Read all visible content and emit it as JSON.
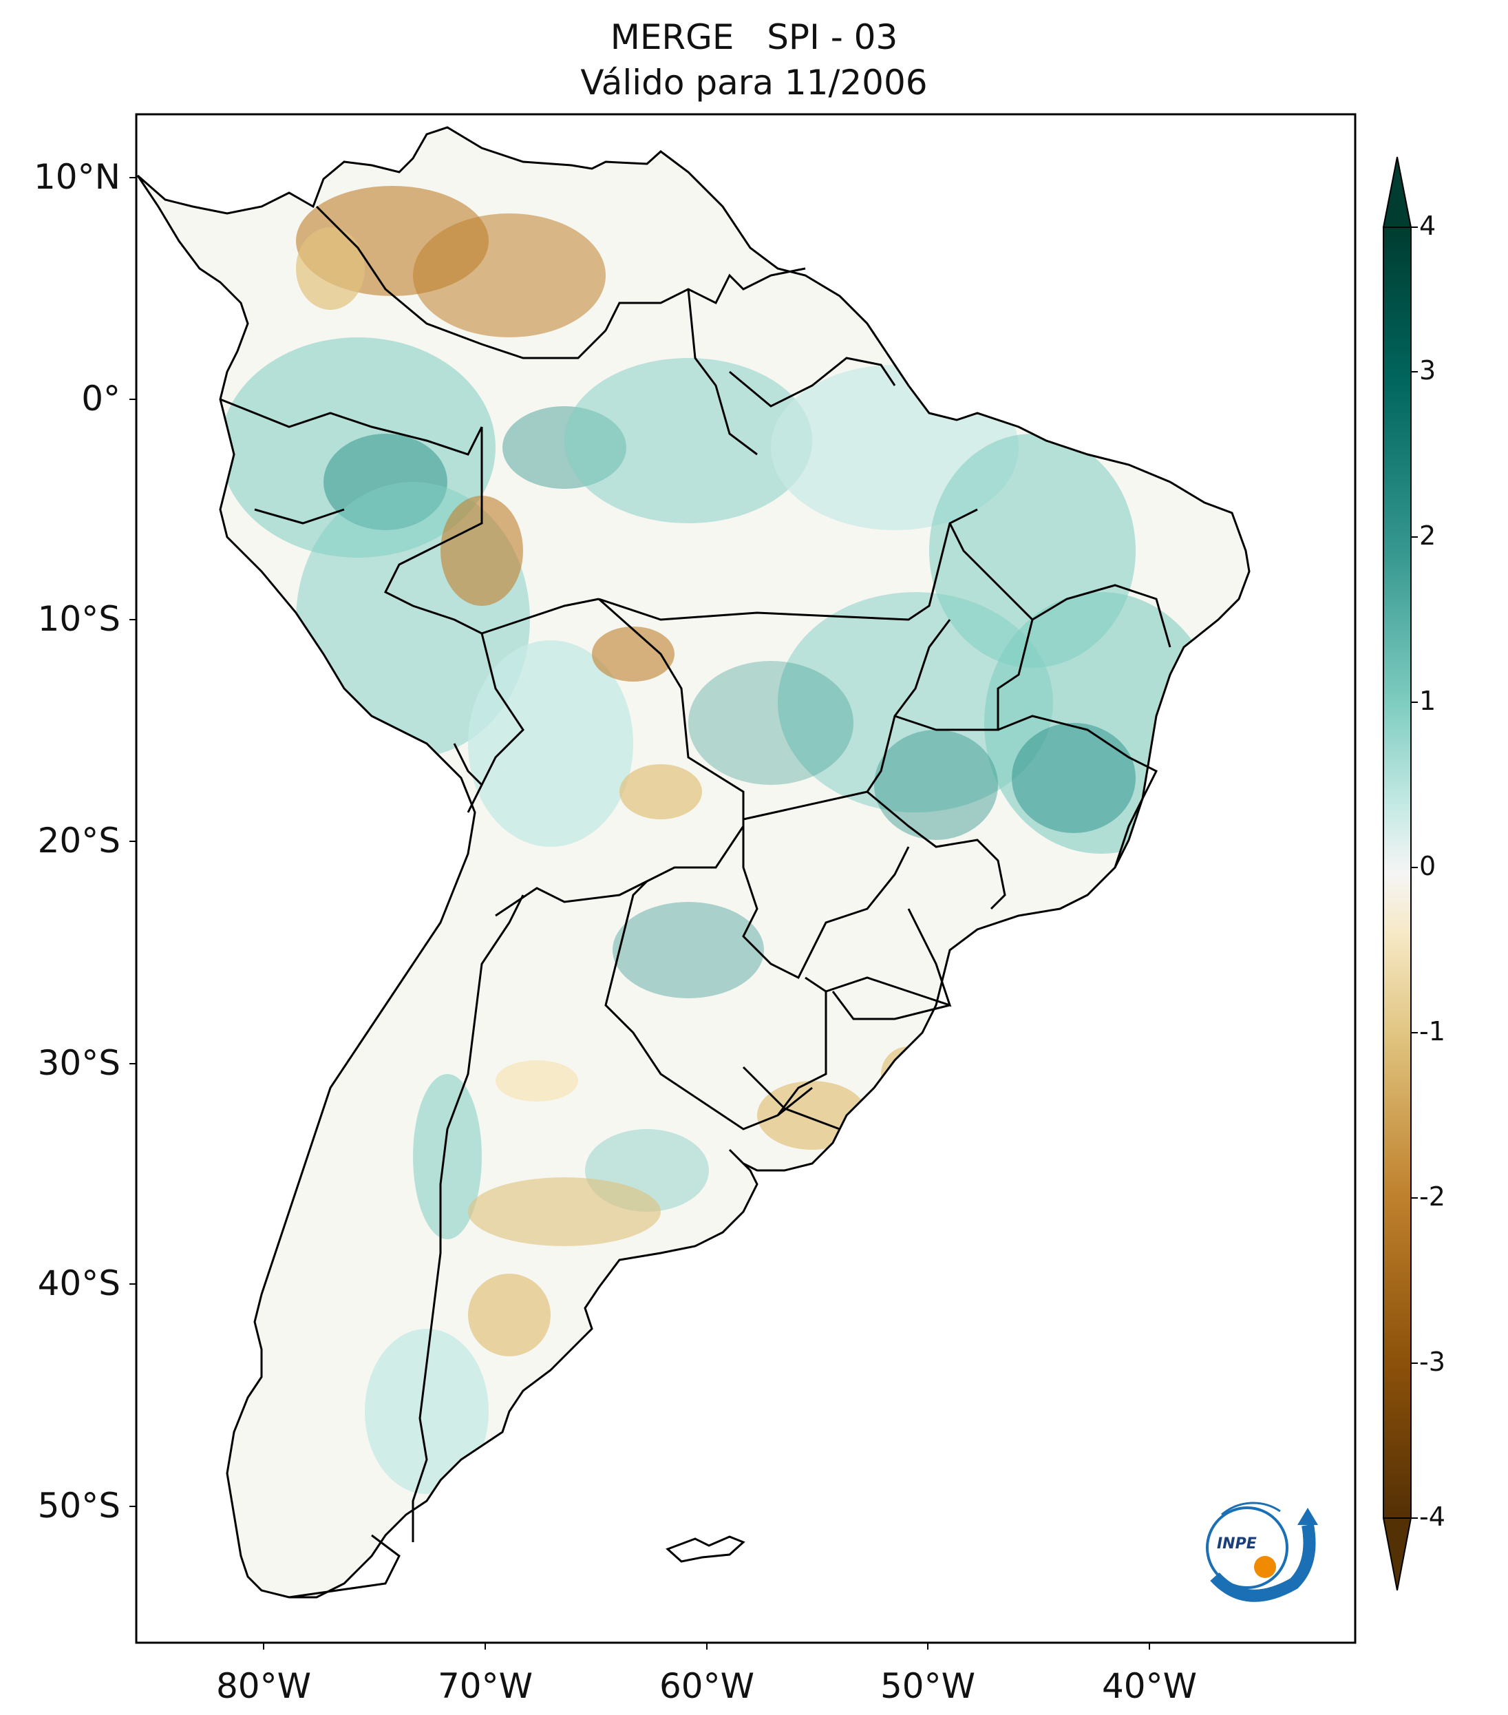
{
  "title": {
    "line1": "MERGE   SPI - 03",
    "line2": "Válido para 11/2006"
  },
  "map": {
    "region": "South America",
    "lat_ticks": [
      "10°N",
      "0°",
      "10°S",
      "20°S",
      "30°S",
      "40°S",
      "50°S"
    ],
    "lon_ticks": [
      "80°W",
      "70°W",
      "60°W",
      "50°W",
      "40°W"
    ],
    "lon_range": [
      -85,
      -30
    ],
    "lat_range": [
      -56,
      13
    ]
  },
  "colorbar": {
    "labels": [
      "4",
      "3",
      "2",
      "1",
      "0",
      "-1",
      "-2",
      "-3",
      "-4"
    ],
    "range": [
      -4,
      4
    ],
    "colormap": "BrBG",
    "extend": "both",
    "colors": {
      "dry_extreme": "#543005",
      "dry_strong": "#8c510a",
      "dry_moderate": "#bf812d",
      "dry_mild": "#dfc27d",
      "dry_slight": "#f6e8c3",
      "neutral": "#f5f5f5",
      "wet_slight": "#c7eae5",
      "wet_mild": "#80cdc1",
      "wet_moderate": "#35978f",
      "wet_strong": "#01665e",
      "wet_extreme": "#003c30"
    }
  },
  "logo": {
    "text": "INPE"
  }
}
